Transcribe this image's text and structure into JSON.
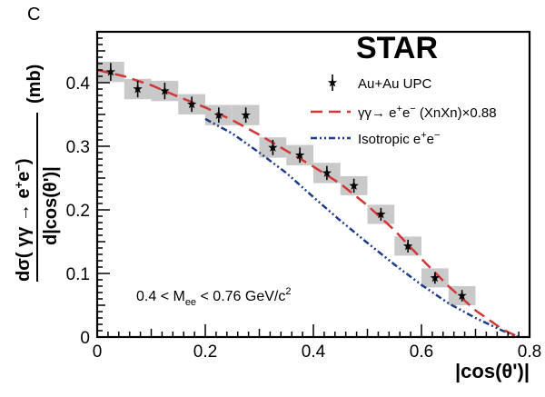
{
  "panel_label": "C",
  "experiment": "STAR",
  "colors": {
    "model": "#d03838",
    "isotropic": "#1f3c88",
    "sys_band": "#c9c9c9",
    "data": "#000000"
  },
  "legend": {
    "data": "Au+Au UPC",
    "model": {
      "main": "γγ→ e",
      "sup1": "+",
      "mid": "e",
      "sup2": "−",
      "tail": " (XnXn)×0.88"
    },
    "isotropic": {
      "main": "Isotropic e",
      "sup1": "+",
      "mid": "e",
      "sup2": "−"
    }
  },
  "cut_label": {
    "pre": "0.4 < M",
    "sub": "ee",
    "mid": " < 0.76 GeV/c",
    "sup": "2"
  },
  "xlabel": "|cos(θ')|",
  "ylabel": {
    "numerator_prefix": "dσ(  γγ  → e",
    "sup1": "+",
    "numerator_mid": "e",
    "sup2": "−",
    "numerator_suffix": ")",
    "denominator": "d|cos(θ')|",
    "unit": "(mb)"
  },
  "chart_data": {
    "type": "scatter",
    "xlim": [
      0,
      0.8
    ],
    "ylim": [
      0,
      0.48
    ],
    "xticks": [
      0,
      0.2,
      0.4,
      0.6,
      0.8
    ],
    "xtick_labels": [
      "0",
      "0.2",
      "0.4",
      "0.6",
      "0.8"
    ],
    "yticks": [
      0,
      0.1,
      0.2,
      0.3,
      0.4
    ],
    "ytick_labels": [
      "0",
      "0.1",
      "0.2",
      "0.3",
      "0.4"
    ],
    "series": [
      {
        "name": "Au+Au UPC",
        "marker": "star",
        "x": [
          0.025,
          0.075,
          0.125,
          0.175,
          0.225,
          0.275,
          0.325,
          0.375,
          0.425,
          0.475,
          0.525,
          0.575,
          0.625,
          0.675
        ],
        "y": [
          0.417,
          0.39,
          0.387,
          0.366,
          0.349,
          0.349,
          0.298,
          0.286,
          0.258,
          0.238,
          0.193,
          0.143,
          0.093,
          0.065
        ],
        "stat_err": [
          0.014,
          0.013,
          0.013,
          0.012,
          0.012,
          0.012,
          0.012,
          0.012,
          0.011,
          0.011,
          0.01,
          0.01,
          0.009,
          0.009
        ],
        "sys_err": [
          0.016,
          0.016,
          0.016,
          0.016,
          0.016,
          0.016,
          0.016,
          0.016,
          0.016,
          0.015,
          0.015,
          0.015,
          0.015,
          0.015
        ]
      },
      {
        "name": "γγ→ e+e− (XnXn)×0.88",
        "style": "dashed",
        "x": [
          0.0,
          0.05,
          0.1,
          0.15,
          0.2,
          0.25,
          0.3,
          0.35,
          0.4,
          0.45,
          0.5,
          0.55,
          0.6,
          0.65,
          0.7,
          0.75,
          0.77,
          0.78
        ],
        "y": [
          0.42,
          0.41,
          0.396,
          0.378,
          0.361,
          0.341,
          0.318,
          0.293,
          0.268,
          0.241,
          0.207,
          0.168,
          0.123,
          0.08,
          0.042,
          0.012,
          0.004,
          0.0
        ]
      },
      {
        "name": "Isotropic e+e−",
        "style": "dashdot",
        "x": [
          0.2,
          0.25,
          0.3,
          0.35,
          0.4,
          0.45,
          0.5,
          0.55,
          0.6,
          0.65,
          0.7,
          0.75,
          0.77,
          0.78
        ],
        "y": [
          0.343,
          0.32,
          0.29,
          0.258,
          0.22,
          0.183,
          0.148,
          0.114,
          0.082,
          0.053,
          0.03,
          0.01,
          0.003,
          0.0
        ]
      }
    ]
  }
}
